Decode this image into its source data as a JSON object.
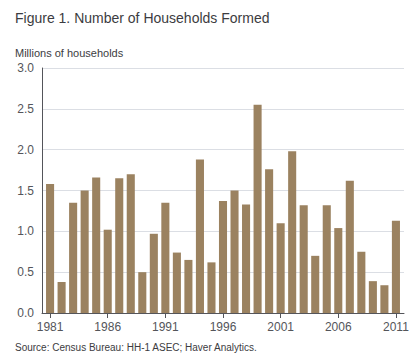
{
  "chart_data": {
    "type": "bar",
    "title": "Figure 1. Number of Households Formed",
    "ylabel": "Millions of households",
    "source": "Source: Census Bureau: HH-1 ASEC; Haver Analytics.",
    "x": [
      1981,
      1982,
      1983,
      1984,
      1985,
      1986,
      1987,
      1988,
      1989,
      1990,
      1991,
      1992,
      1993,
      1994,
      1995,
      1996,
      1997,
      1998,
      1999,
      2000,
      2001,
      2002,
      2003,
      2004,
      2005,
      2006,
      2007,
      2008,
      2009,
      2010,
      2011
    ],
    "values": [
      1.58,
      0.38,
      1.35,
      1.5,
      1.66,
      1.02,
      1.65,
      1.7,
      0.5,
      0.97,
      1.35,
      0.74,
      0.65,
      1.88,
      0.62,
      1.37,
      1.5,
      1.33,
      2.55,
      1.76,
      1.1,
      1.98,
      1.32,
      0.7,
      1.32,
      1.04,
      1.62,
      0.75,
      0.39,
      0.34,
      1.13
    ],
    "color": "#9b8260",
    "xlim": [
      1980.3,
      2011.7
    ],
    "xticks": [
      1981,
      1986,
      1991,
      1996,
      2001,
      2006,
      2011
    ],
    "ylim": [
      0,
      3.0
    ],
    "yticks": [
      {
        "value": 0,
        "label": "0.0"
      },
      0.5,
      {
        "value": 1,
        "label": "1.0"
      },
      1.5,
      {
        "value": 2,
        "label": "2.0"
      },
      2.5,
      {
        "value": 3,
        "label": "3.0"
      }
    ],
    "grid": true
  }
}
